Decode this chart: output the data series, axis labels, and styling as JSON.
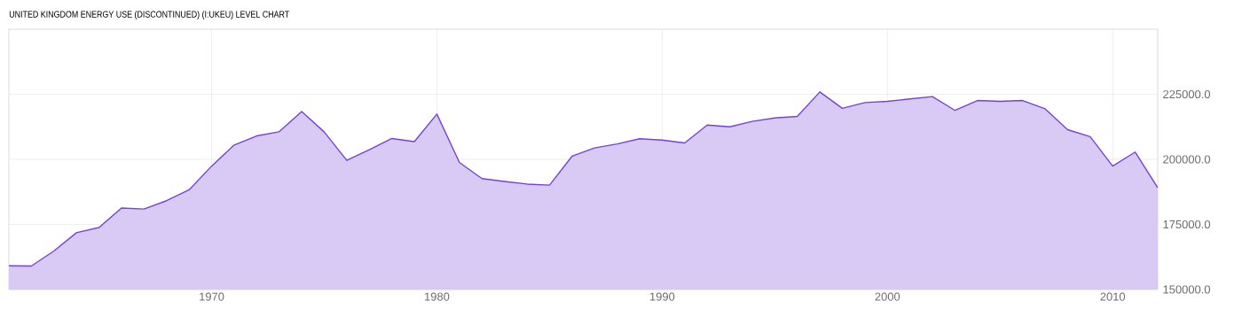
{
  "chart_data": {
    "type": "area",
    "title": "UNITED KINGDOM ENERGY USE (DISCONTINUED) (I:UKEU) LEVEL CHART",
    "x": [
      1961,
      1962,
      1963,
      1964,
      1965,
      1966,
      1967,
      1968,
      1969,
      1970,
      1971,
      1972,
      1973,
      1974,
      1975,
      1976,
      1977,
      1978,
      1979,
      1980,
      1981,
      1982,
      1983,
      1984,
      1985,
      1986,
      1987,
      1988,
      1989,
      1990,
      1991,
      1992,
      1993,
      1994,
      1995,
      1996,
      1997,
      1998,
      1999,
      2000,
      2001,
      2002,
      2003,
      2004,
      2005,
      2006,
      2007,
      2008,
      2009,
      2010,
      2011,
      2012
    ],
    "values": [
      159100,
      159000,
      164800,
      171800,
      173800,
      181300,
      180900,
      184100,
      188300,
      197400,
      205500,
      209000,
      210600,
      218400,
      210500,
      199600,
      203700,
      208000,
      206800,
      217400,
      198800,
      192600,
      191500,
      190500,
      190100,
      201200,
      204400,
      205900,
      207900,
      207400,
      206300,
      213200,
      212500,
      214600,
      215900,
      216500,
      225900,
      219600,
      221800,
      222300,
      223200,
      224100,
      218800,
      222600,
      222300,
      222600,
      219400,
      211400,
      208700,
      197400,
      202800,
      189100
    ],
    "color": "#7443d6",
    "xlim": [
      1961,
      2012
    ],
    "ylim": [
      150000,
      250000
    ],
    "xticks": [
      1970,
      1980,
      1990,
      2000,
      2010
    ],
    "yticks": [
      {
        "value": 150000,
        "label": "150000.0"
      },
      {
        "value": 175000,
        "label": "175000.0"
      },
      {
        "value": 200000,
        "label": "200000.0"
      },
      {
        "value": 225000,
        "label": "225000.0"
      }
    ],
    "grid": true
  }
}
